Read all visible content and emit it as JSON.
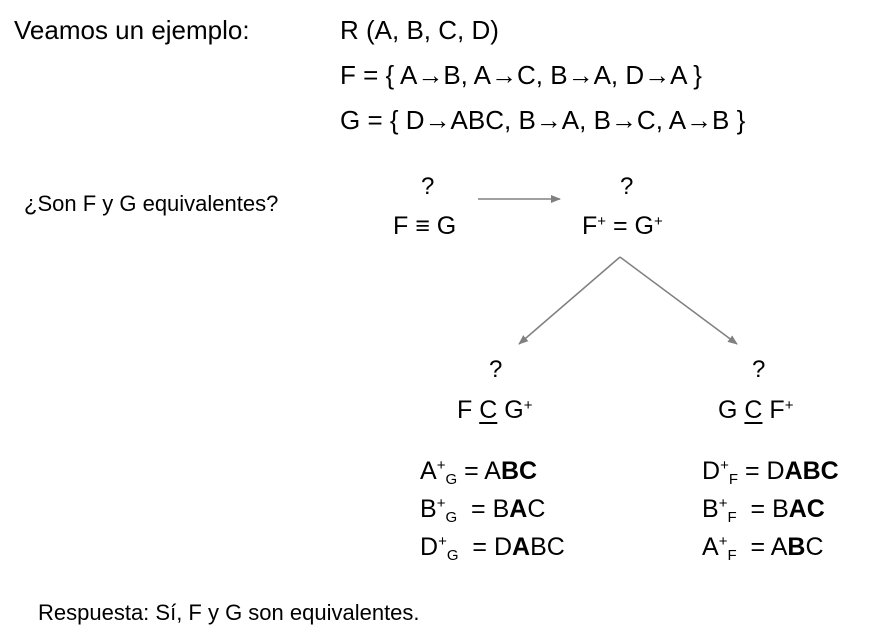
{
  "intro_label": "Veamos un ejemplo:",
  "relation": "R (A, B, C, D)",
  "set_f": "F = { A→B, A→C, B→A, D→A }",
  "set_g": "G = { D→ABC, B→A, B→C, A→B }",
  "question": "¿Son F y G equivalentes?",
  "top_left": {
    "q": "?",
    "expr": "F ≡ G"
  },
  "top_right": {
    "q": "?",
    "base1": "F",
    "sup1": "+",
    "mid": " = G",
    "sup2": "+"
  },
  "left_branch": {
    "q": "?",
    "a": "F ",
    "sub": "C",
    "b": " G",
    "sup": "+"
  },
  "right_branch": {
    "q": "?",
    "a": "G ",
    "sub": "C",
    "b": " F",
    "sup": "+"
  },
  "left_closures": [
    {
      "base": "A",
      "sup": "+",
      "sub": "G",
      "eq": " = ",
      "plain": "A",
      "bold": "BC",
      "tail": ""
    },
    {
      "base": "B",
      "sup": "+",
      "sub": "G",
      "eq": "  = ",
      "plain": "B",
      "bold": "A",
      "tail": "C"
    },
    {
      "base": "D",
      "sup": "+",
      "sub": "G",
      "eq": "  = ",
      "plain": "D",
      "bold": "A",
      "tail": "BC"
    }
  ],
  "right_closures": [
    {
      "base": "D",
      "sup": "+",
      "sub": "F",
      "eq": " = ",
      "plain": "D",
      "bold": "ABC",
      "tail": ""
    },
    {
      "base": "B",
      "sup": "+",
      "sub": "F",
      "eq": "  = ",
      "plain": "B",
      "bold": "AC",
      "tail": ""
    },
    {
      "base": "A",
      "sup": "+",
      "sub": "F",
      "eq": "  = ",
      "plain": "A",
      "bold": "B",
      "tail": "C"
    }
  ],
  "answer": "Respuesta: Sí, F y G son equivalentes.",
  "colors": {
    "arrow": "#808080",
    "text": "#000000"
  }
}
